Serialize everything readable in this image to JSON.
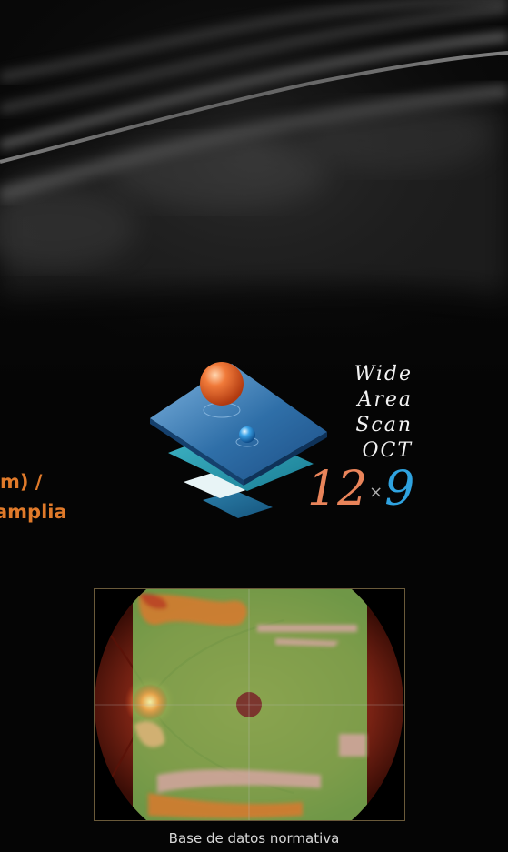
{
  "headline": {
    "line1": "m) /",
    "line2": "amplia"
  },
  "logo": {
    "words": [
      "Wide",
      "Area",
      "Scan",
      "OCT"
    ],
    "dim_width": "12",
    "dim_times": "×",
    "dim_height": "9"
  },
  "caption": "Base de datos normativa",
  "colors": {
    "headline": "#e07a2a",
    "accent_orange": "#e9845a",
    "accent_blue": "#2fa3e0",
    "background": "#050505"
  }
}
